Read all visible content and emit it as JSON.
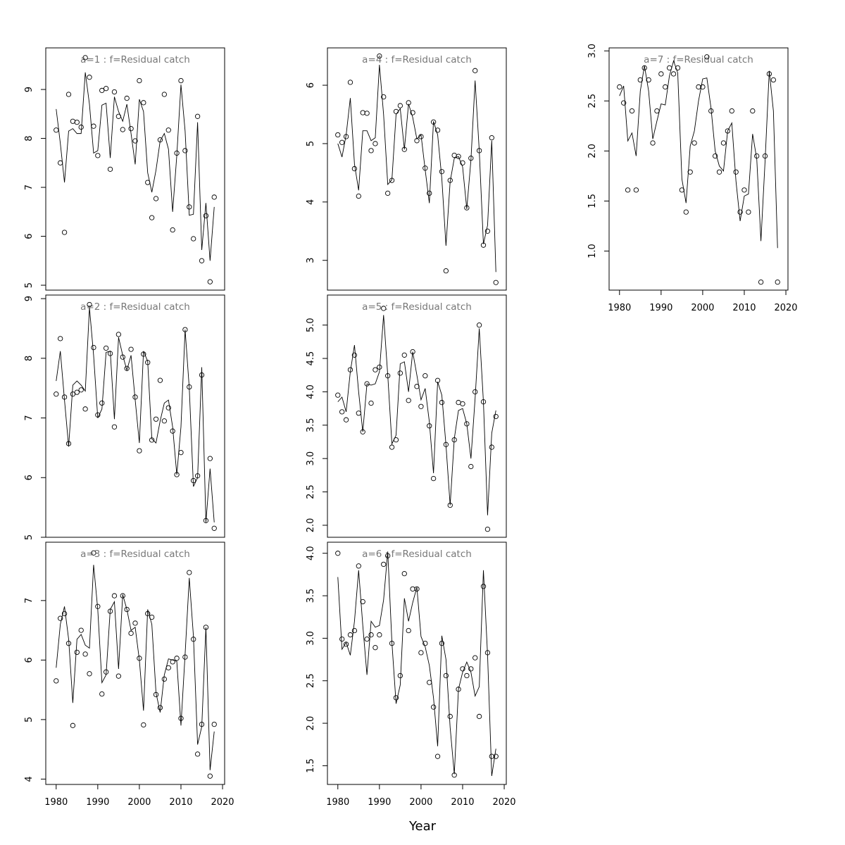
{
  "xlabel": "Year",
  "chart_data": [
    {
      "type": "line",
      "title": "a=1 : f=Residual catch",
      "x": [
        1980,
        1981,
        1982,
        1983,
        1984,
        1985,
        1986,
        1987,
        1988,
        1989,
        1990,
        1991,
        1992,
        1993,
        1994,
        1995,
        1996,
        1997,
        1998,
        1999,
        2000,
        2001,
        2002,
        2003,
        2004,
        2005,
        2006,
        2007,
        2008,
        2009,
        2010,
        2011,
        2012,
        2013,
        2014,
        2015,
        2016,
        2017,
        2018
      ],
      "xlim": [
        1977.5,
        2020.5
      ],
      "ylim": [
        4.9,
        9.85
      ],
      "yticks": [
        5,
        6,
        7,
        8,
        9
      ],
      "series": [
        {
          "style": "points",
          "color": "#000000",
          "values": [
            8.17,
            7.5,
            6.08,
            8.9,
            8.35,
            8.33,
            8.23,
            9.65,
            9.25,
            8.25,
            7.65,
            8.98,
            9.02,
            7.37,
            8.95,
            8.45,
            8.18,
            8.82,
            8.2,
            7.95,
            9.18,
            8.73,
            7.1,
            6.38,
            6.77,
            7.97,
            8.9,
            8.17,
            6.13,
            7.7,
            9.18,
            7.75,
            6.6,
            5.95,
            8.45,
            5.5,
            6.42,
            5.07,
            6.8
          ]
        },
        {
          "style": "line",
          "color": "#000000",
          "values": [
            8.6,
            7.9,
            7.1,
            8.15,
            8.2,
            8.1,
            8.1,
            9.35,
            8.7,
            7.7,
            7.75,
            8.68,
            8.72,
            7.6,
            8.85,
            8.55,
            8.35,
            8.7,
            8.1,
            7.47,
            8.8,
            8.55,
            7.3,
            6.9,
            7.35,
            7.95,
            8.1,
            7.78,
            6.5,
            7.65,
            9.1,
            8.15,
            6.43,
            6.45,
            8.33,
            5.72,
            6.68,
            5.5,
            6.6
          ]
        }
      ]
    },
    {
      "type": "line",
      "title": "a=2 : f=Residual catch",
      "x": [
        1980,
        1981,
        1982,
        1983,
        1984,
        1985,
        1986,
        1987,
        1988,
        1989,
        1990,
        1991,
        1992,
        1993,
        1994,
        1995,
        1996,
        1997,
        1998,
        1999,
        2000,
        2001,
        2002,
        2003,
        2004,
        2005,
        2006,
        2007,
        2008,
        2009,
        2010,
        2011,
        2012,
        2013,
        2014,
        2015,
        2016,
        2017,
        2018
      ],
      "xlim": [
        1977.5,
        2020.5
      ],
      "ylim": [
        5.0,
        9.06
      ],
      "yticks": [
        5,
        6,
        7,
        8,
        9
      ],
      "series": [
        {
          "style": "points",
          "color": "#000000",
          "values": [
            7.4,
            8.33,
            7.35,
            6.57,
            7.4,
            7.43,
            7.47,
            7.15,
            8.9,
            8.18,
            7.05,
            7.25,
            8.17,
            8.08,
            6.85,
            8.4,
            8.02,
            7.83,
            8.15,
            7.35,
            6.45,
            8.07,
            7.93,
            6.63,
            6.98,
            7.63,
            6.95,
            7.17,
            6.78,
            6.05,
            6.42,
            8.48,
            7.52,
            5.95,
            6.03,
            7.72,
            5.28,
            6.32,
            5.15
          ]
        },
        {
          "style": "line",
          "color": "#000000",
          "values": [
            7.62,
            8.12,
            7.3,
            6.52,
            7.55,
            7.62,
            7.55,
            7.45,
            8.85,
            8.05,
            7.0,
            7.15,
            8.1,
            8.12,
            6.98,
            8.35,
            8.05,
            7.8,
            8.05,
            7.3,
            6.58,
            8.12,
            7.95,
            6.65,
            6.58,
            6.95,
            7.25,
            7.3,
            6.85,
            6.05,
            6.85,
            8.48,
            7.5,
            5.85,
            6.0,
            7.85,
            5.25,
            6.15,
            5.25
          ]
        }
      ]
    },
    {
      "type": "line",
      "title": "a=3 : f=Residual catch",
      "x": [
        1980,
        1981,
        1982,
        1983,
        1984,
        1985,
        1986,
        1987,
        1988,
        1989,
        1990,
        1991,
        1992,
        1993,
        1994,
        1995,
        1996,
        1997,
        1998,
        1999,
        2000,
        2001,
        2002,
        2003,
        2004,
        2005,
        2006,
        2007,
        2008,
        2009,
        2010,
        2011,
        2012,
        2013,
        2014,
        2015,
        2016,
        2017,
        2018
      ],
      "xlim": [
        1977.5,
        2020.5
      ],
      "ylim": [
        3.91,
        7.98
      ],
      "yticks": [
        4,
        5,
        6,
        7
      ],
      "xticks": [
        1980,
        1990,
        2000,
        2010,
        2020
      ],
      "series": [
        {
          "style": "points",
          "color": "#000000",
          "values": [
            5.65,
            6.7,
            6.78,
            6.28,
            4.9,
            6.13,
            6.5,
            6.1,
            5.77,
            7.8,
            6.9,
            5.43,
            5.8,
            6.82,
            7.08,
            5.73,
            7.08,
            6.85,
            6.45,
            6.62,
            6.03,
            4.91,
            6.78,
            6.72,
            5.42,
            5.2,
            5.68,
            5.87,
            5.97,
            6.03,
            5.02,
            6.05,
            7.47,
            6.35,
            4.42,
            4.92,
            6.55,
            4.05,
            4.92
          ]
        },
        {
          "style": "line",
          "color": "#000000",
          "values": [
            5.87,
            6.6,
            6.9,
            6.35,
            5.28,
            6.35,
            6.43,
            6.25,
            6.2,
            7.6,
            6.85,
            5.62,
            5.75,
            6.85,
            6.98,
            5.85,
            7.1,
            6.85,
            6.5,
            6.55,
            6.0,
            5.15,
            6.85,
            6.6,
            5.45,
            5.12,
            5.75,
            6.02,
            6.0,
            5.98,
            4.9,
            6.1,
            7.38,
            6.4,
            4.58,
            4.88,
            6.55,
            4.15,
            4.8
          ]
        }
      ]
    },
    {
      "type": "line",
      "title": "a=4 : f=Residual catch",
      "x": [
        1980,
        1981,
        1982,
        1983,
        1984,
        1985,
        1986,
        1987,
        1988,
        1989,
        1990,
        1991,
        1992,
        1993,
        1994,
        1995,
        1996,
        1997,
        1998,
        1999,
        2000,
        2001,
        2002,
        2003,
        2004,
        2005,
        2006,
        2007,
        2008,
        2009,
        2010,
        2011,
        2012,
        2013,
        2014,
        2015,
        2016,
        2017,
        2018
      ],
      "xlim": [
        1977.5,
        2020.5
      ],
      "ylim": [
        2.49,
        6.64
      ],
      "yticks": [
        3,
        4,
        5,
        6
      ],
      "series": [
        {
          "style": "points",
          "color": "#000000",
          "values": [
            5.15,
            5.02,
            5.12,
            6.05,
            4.57,
            4.1,
            5.53,
            5.52,
            4.88,
            5.0,
            6.5,
            5.8,
            4.15,
            4.37,
            5.55,
            5.65,
            4.9,
            5.7,
            5.53,
            5.05,
            5.12,
            4.58,
            4.15,
            5.37,
            5.23,
            4.52,
            2.82,
            4.37,
            4.8,
            4.78,
            4.67,
            3.9,
            4.75,
            6.25,
            4.88,
            3.26,
            3.5,
            5.1,
            2.62
          ]
        },
        {
          "style": "line",
          "color": "#000000",
          "values": [
            5.0,
            4.77,
            5.15,
            5.78,
            4.65,
            4.2,
            5.22,
            5.22,
            5.05,
            5.1,
            6.35,
            5.5,
            4.3,
            4.38,
            5.5,
            5.6,
            4.9,
            5.68,
            5.45,
            5.08,
            5.15,
            4.55,
            3.98,
            5.38,
            5.15,
            4.4,
            3.25,
            4.35,
            4.75,
            4.78,
            4.6,
            3.88,
            4.72,
            6.08,
            4.88,
            3.28,
            3.6,
            5.05,
            2.8
          ]
        }
      ]
    },
    {
      "type": "line",
      "title": "a=5 : f=Residual catch",
      "x": [
        1980,
        1981,
        1982,
        1983,
        1984,
        1985,
        1986,
        1987,
        1988,
        1989,
        1990,
        1991,
        1992,
        1993,
        1994,
        1995,
        1996,
        1997,
        1998,
        1999,
        2000,
        2001,
        2002,
        2003,
        2004,
        2005,
        2006,
        2007,
        2008,
        2009,
        2010,
        2011,
        2012,
        2013,
        2014,
        2015,
        2016,
        2017,
        2018
      ],
      "xlim": [
        1977.5,
        2020.5
      ],
      "ylim": [
        1.82,
        5.45
      ],
      "yticks": [
        {
          "value": 2,
          "label": "2.0"
        },
        2.5,
        {
          "value": 3,
          "label": "3.0"
        },
        3.5,
        {
          "value": 4,
          "label": "4.0"
        },
        4.5,
        {
          "value": 5,
          "label": "5.0"
        }
      ],
      "series": [
        {
          "style": "points",
          "color": "#000000",
          "values": [
            3.95,
            3.7,
            3.58,
            4.33,
            4.55,
            3.68,
            3.4,
            4.12,
            3.83,
            4.33,
            4.37,
            5.25,
            4.24,
            3.17,
            3.28,
            4.28,
            4.55,
            3.87,
            4.6,
            4.08,
            3.78,
            4.24,
            3.49,
            2.7,
            4.17,
            3.84,
            3.21,
            2.3,
            3.28,
            3.84,
            3.82,
            3.52,
            2.88,
            4.0,
            5.0,
            3.85,
            1.94,
            3.17,
            3.63
          ]
        },
        {
          "style": "line",
          "color": "#000000",
          "values": [
            3.85,
            3.92,
            3.7,
            4.3,
            4.7,
            4.0,
            3.4,
            4.12,
            4.1,
            4.12,
            4.3,
            5.15,
            4.25,
            3.22,
            3.35,
            4.42,
            4.45,
            4.0,
            4.6,
            4.25,
            3.88,
            4.05,
            3.55,
            2.78,
            4.15,
            3.95,
            3.2,
            2.3,
            3.3,
            3.72,
            3.75,
            3.52,
            3.0,
            3.9,
            4.95,
            3.85,
            2.15,
            3.38,
            3.72
          ]
        }
      ]
    },
    {
      "type": "line",
      "title": "a=6 : f=Residual catch",
      "x": [
        1980,
        1981,
        1982,
        1983,
        1984,
        1985,
        1986,
        1987,
        1988,
        1989,
        1990,
        1991,
        1992,
        1993,
        1994,
        1995,
        1996,
        1997,
        1998,
        1999,
        2000,
        2001,
        2002,
        2003,
        2004,
        2005,
        2006,
        2007,
        2008,
        2009,
        2010,
        2011,
        2012,
        2013,
        2014,
        2015,
        2016,
        2017,
        2018
      ],
      "xlim": [
        1977.5,
        2020.5
      ],
      "ylim": [
        1.28,
        4.13
      ],
      "yticks": [
        1.5,
        {
          "value": 2,
          "label": "2.0"
        },
        2.5,
        {
          "value": 3,
          "label": "3.0"
        },
        3.5,
        {
          "value": 4,
          "label": "4.0"
        }
      ],
      "xticks": [
        1980,
        1990,
        2000,
        2010,
        2020
      ],
      "series": [
        {
          "style": "points",
          "color": "#000000",
          "values": [
            4.0,
            2.99,
            2.93,
            3.04,
            3.09,
            3.85,
            3.43,
            2.99,
            3.04,
            2.89,
            3.04,
            3.87,
            3.97,
            2.94,
            2.3,
            2.56,
            3.76,
            3.09,
            3.58,
            3.58,
            2.83,
            2.94,
            2.48,
            2.19,
            1.61,
            2.94,
            2.56,
            2.08,
            1.39,
            2.4,
            2.64,
            2.56,
            2.64,
            2.77,
            2.08,
            3.61,
            2.83,
            1.61,
            1.61
          ]
        },
        {
          "style": "line",
          "color": "#000000",
          "values": [
            3.72,
            2.87,
            2.95,
            2.8,
            3.2,
            3.8,
            3.15,
            2.57,
            3.2,
            3.13,
            3.15,
            3.45,
            4.02,
            2.95,
            2.23,
            2.45,
            3.47,
            3.2,
            3.42,
            3.6,
            3.02,
            2.9,
            2.68,
            2.3,
            1.73,
            3.03,
            2.75,
            1.95,
            1.4,
            2.4,
            2.6,
            2.72,
            2.6,
            2.32,
            2.43,
            3.8,
            2.8,
            1.38,
            1.7
          ]
        }
      ]
    },
    {
      "type": "line",
      "title": "a=7 : f=Residual catch",
      "x": [
        1980,
        1981,
        1982,
        1983,
        1984,
        1985,
        1986,
        1987,
        1988,
        1989,
        1990,
        1991,
        1992,
        1993,
        1994,
        1995,
        1996,
        1997,
        1998,
        1999,
        2000,
        2001,
        2002,
        2003,
        2004,
        2005,
        2006,
        2007,
        2008,
        2009,
        2010,
        2011,
        2012,
        2013,
        2014,
        2015,
        2016,
        2017,
        2018
      ],
      "xlim": [
        1977.5,
        2020.5
      ],
      "ylim": [
        0.61,
        3.03
      ],
      "yticks": [
        {
          "value": 1,
          "label": "1.0"
        },
        1.5,
        {
          "value": 2,
          "label": "2.0"
        },
        2.5,
        {
          "value": 3,
          "label": "3.0"
        }
      ],
      "xticks": [
        1980,
        1990,
        2000,
        2010,
        2020
      ],
      "series": [
        {
          "style": "points",
          "color": "#000000",
          "values": [
            2.64,
            2.48,
            1.61,
            2.4,
            1.61,
            2.71,
            2.83,
            2.71,
            2.08,
            2.4,
            2.77,
            2.64,
            2.83,
            2.77,
            2.83,
            1.61,
            1.39,
            1.79,
            2.08,
            2.64,
            2.64,
            2.94,
            2.4,
            1.95,
            1.79,
            2.08,
            2.2,
            2.4,
            1.79,
            1.39,
            1.61,
            1.39,
            2.4,
            1.95,
            0.69,
            1.95,
            2.77,
            2.71,
            0.69
          ]
        },
        {
          "style": "line",
          "color": "#000000",
          "values": [
            2.55,
            2.65,
            2.1,
            2.18,
            1.95,
            2.6,
            2.85,
            2.6,
            2.12,
            2.3,
            2.47,
            2.46,
            2.75,
            2.9,
            2.78,
            1.72,
            1.48,
            2.05,
            2.2,
            2.5,
            2.72,
            2.73,
            2.43,
            2.0,
            1.85,
            1.8,
            2.2,
            2.28,
            1.7,
            1.3,
            1.55,
            1.57,
            2.17,
            1.92,
            1.1,
            1.9,
            2.8,
            2.4,
            1.03
          ]
        }
      ]
    }
  ]
}
